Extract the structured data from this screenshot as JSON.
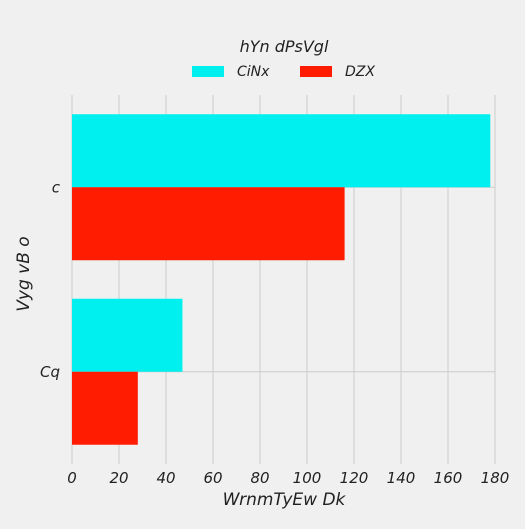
{
  "chart_data": {
    "type": "bar",
    "orientation": "horizontal",
    "categories": [
      "c",
      "Cq"
    ],
    "series": [
      {
        "name": "CiNx",
        "values": [
          178,
          47
        ],
        "color": "#00efef"
      },
      {
        "name": "DZX",
        "values": [
          116,
          28
        ],
        "color": "#ff1c00"
      }
    ],
    "xlabel": "WrnmTyEw Dk",
    "ylabel": "Vyg vB o",
    "legend_title": "hYn dPsVgl",
    "xlim": [
      0,
      180
    ],
    "xticks": [
      0,
      20,
      40,
      60,
      80,
      100,
      120,
      140,
      160,
      180
    ],
    "grid": true,
    "legend_position": "top-center"
  },
  "colors": {
    "background": "#f0f0f0",
    "grid": "#cbcbcb"
  }
}
